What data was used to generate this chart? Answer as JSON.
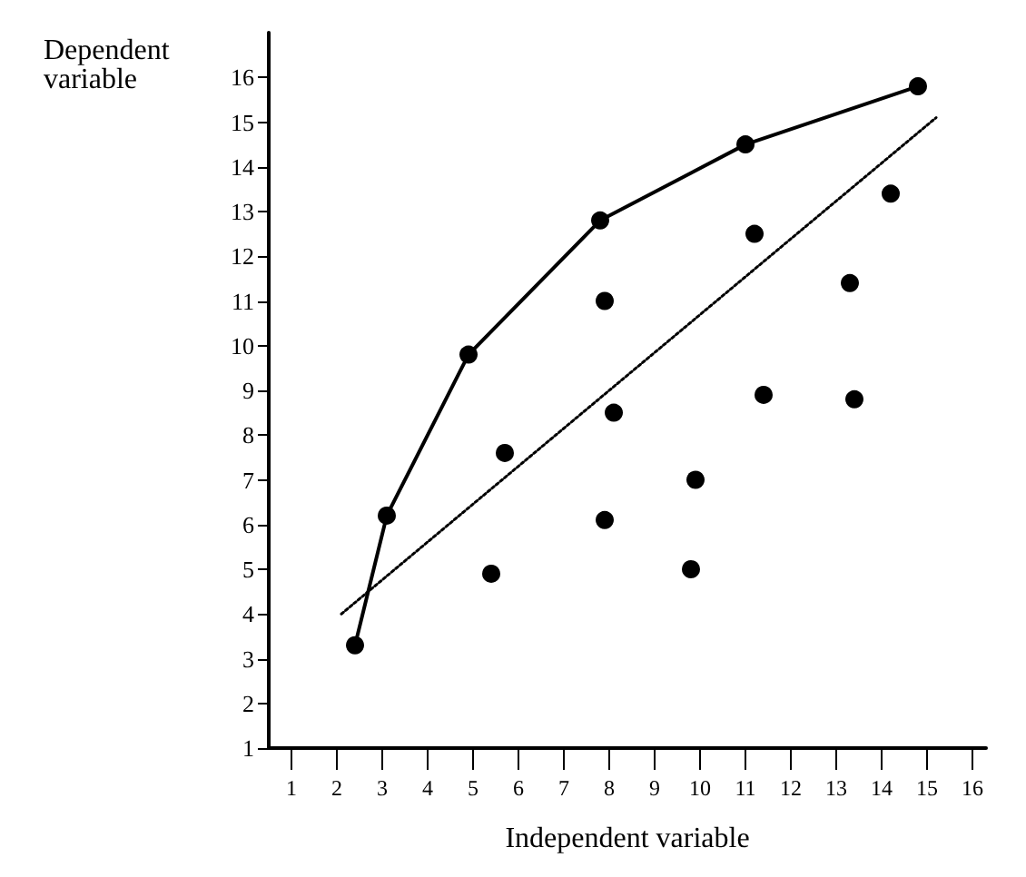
{
  "chart_data": {
    "type": "scatter",
    "xlabel": "Independent variable",
    "ylabel": "Dependent variable",
    "xlim": [
      0.5,
      16.3
    ],
    "ylim": [
      1,
      17
    ],
    "xticks": [
      1,
      2,
      3,
      4,
      5,
      6,
      7,
      8,
      9,
      10,
      11,
      12,
      13,
      14,
      15,
      16
    ],
    "yticks": [
      1,
      2,
      3,
      4,
      5,
      6,
      7,
      8,
      9,
      10,
      11,
      12,
      13,
      14,
      15,
      16
    ],
    "grid": false,
    "series": [
      {
        "type": "line",
        "marker": "circle",
        "line_style": "solid",
        "color": "#000000",
        "x": [
          2.4,
          3.1,
          4.9,
          7.8,
          11.0,
          14.8
        ],
        "values": [
          3.3,
          6.2,
          9.8,
          12.8,
          14.5,
          15.8
        ]
      },
      {
        "marker": "circle",
        "color": "#000000",
        "x": [
          7.9,
          11.2,
          13.3,
          14.2,
          8.1,
          11.4,
          13.4,
          5.7,
          5.4,
          7.9,
          9.9,
          9.8
        ],
        "values": [
          11.0,
          12.5,
          11.4,
          13.4,
          8.5,
          8.9,
          8.8,
          7.6,
          4.9,
          6.1,
          7.0,
          5.0
        ]
      },
      {
        "type": "line",
        "marker": "none",
        "line_style": "dotted",
        "color": "#000000",
        "x": [
          2.1,
          15.2
        ],
        "values": [
          4.0,
          15.1
        ]
      }
    ]
  }
}
